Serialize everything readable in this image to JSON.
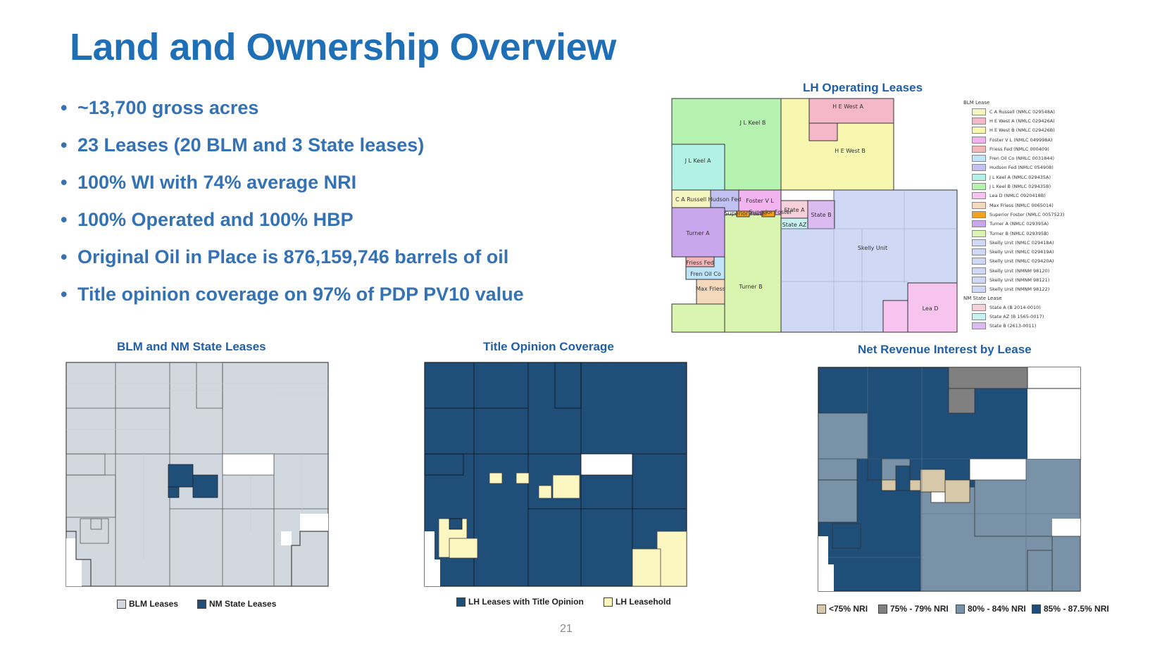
{
  "title": "Land and Ownership Overview",
  "bullets": [
    "~13,700 gross acres",
    "23 Leases (20 BLM and 3 State leases)",
    "100% WI with 74% average NRI",
    "100% Operated and 100% HBP",
    "Original Oil in Place is 876,159,746 barrels of oil",
    "Title opinion coverage on 97% of PDP PV10 value"
  ],
  "lh_map": {
    "title": "LH Operating Leases",
    "labels": {
      "jl_keel_b": "J L Keel B",
      "he_west_a": "H E West A",
      "he_west_b": "H E West B",
      "jl_keel_a": "J L Keel A",
      "ca_russell": "C A Russell",
      "hudson_fed": "Hudson Fed",
      "foster_vl": "Foster V L",
      "state_a": "State A",
      "superior_foster_1": "Superior Foster",
      "superior_foster_2": "Superior Foster",
      "state_b": "State B",
      "state_az": "State AZ",
      "turner_a": "Turner A",
      "skelly_unit": "Skelly Unit",
      "friess_fed": "Friess Fed",
      "fren_oil_co": "Fren Oil Co",
      "max_friess": "Max Friess",
      "turner_b": "Turner B",
      "lea_d": "Lea D"
    },
    "legend": {
      "blm_header": "BLM Lease",
      "blm_items": [
        {
          "label": "C A Russell (NMLC 029548A)",
          "color": "#f5f5c0"
        },
        {
          "label": "H E West A (NMLC 029426A)",
          "color": "#f5b8c8"
        },
        {
          "label": "H E West B (NMLC 029426B)",
          "color": "#f7f7b0"
        },
        {
          "label": "Foster V L (NMLC 049998A)",
          "color": "#f2b4ee"
        },
        {
          "label": "Friess Fed (NMLC 000409)",
          "color": "#f4b6b6"
        },
        {
          "label": "Fren Oil Co (NMLC 0031844)",
          "color": "#bfe4f7"
        },
        {
          "label": "Hudson Fed (NMLC 054908)",
          "color": "#c2c2f2"
        },
        {
          "label": "J L Keel A (NMLC 029435A)",
          "color": "#b2f2e6"
        },
        {
          "label": "J L Keel B (NMLC 029435B)",
          "color": "#b6f2b0"
        },
        {
          "label": "Lea D (NMLC 0920418B)",
          "color": "#f6c4ee"
        },
        {
          "label": "Max Friess (NMLC 0065014)",
          "color": "#f5d9bc"
        },
        {
          "label": "Superior Foster (NMLC 0057523)",
          "color": "#f2a020"
        },
        {
          "label": "Turner A (NMLC 029395A)",
          "color": "#caa6ec"
        },
        {
          "label": "Turner B (NMLC 029395B)",
          "color": "#daf5b0"
        },
        {
          "label": "Skelly Unit (NMLC 029418A)",
          "color": "#cfd8f5"
        },
        {
          "label": "Skelly Unit (NMLC 029419A)",
          "color": "#cfd8f5"
        },
        {
          "label": "Skelly Unit (NMLC 029420A)",
          "color": "#cfd8f5"
        },
        {
          "label": "Skelly Unit (NMNM 98120)",
          "color": "#cfd8f5"
        },
        {
          "label": "Skelly Unit (NMNM 98121)",
          "color": "#cfd8f5"
        },
        {
          "label": "Skelly Unit (NMNM 98122)",
          "color": "#cfd8f5"
        }
      ],
      "state_header": "NM State Lease",
      "state_items": [
        {
          "label": "State A (B 2014-0010)",
          "color": "#f8d0dc"
        },
        {
          "label": "State AZ (B 1565-0017)",
          "color": "#c6f2f2"
        },
        {
          "label": "State B (2613-0011)",
          "color": "#dcbcf0"
        }
      ]
    }
  },
  "blm_map": {
    "title": "BLM and NM State Leases",
    "legend": [
      {
        "label": "BLM Leases",
        "color": "#d2d8e0"
      },
      {
        "label": "NM State Leases",
        "color": "#1f4e79"
      }
    ]
  },
  "title_map": {
    "title": "Title Opinion Coverage",
    "legend": [
      {
        "label": "LH Leases with Title Opinion",
        "color": "#1f4e79"
      },
      {
        "label": "LH Leasehold",
        "color": "#fcf6c0"
      }
    ]
  },
  "nri_map": {
    "title": "Net Revenue Interest by Lease",
    "legend": [
      {
        "label": "<75% NRI",
        "color": "#d6c8a8"
      },
      {
        "label": "75% - 79% NRI",
        "color": "#808080"
      },
      {
        "label": "80% - 84% NRI",
        "color": "#7a92a8"
      },
      {
        "label": "85% - 87.5% NRI",
        "color": "#1f4e79"
      }
    ]
  },
  "page_number": "21"
}
